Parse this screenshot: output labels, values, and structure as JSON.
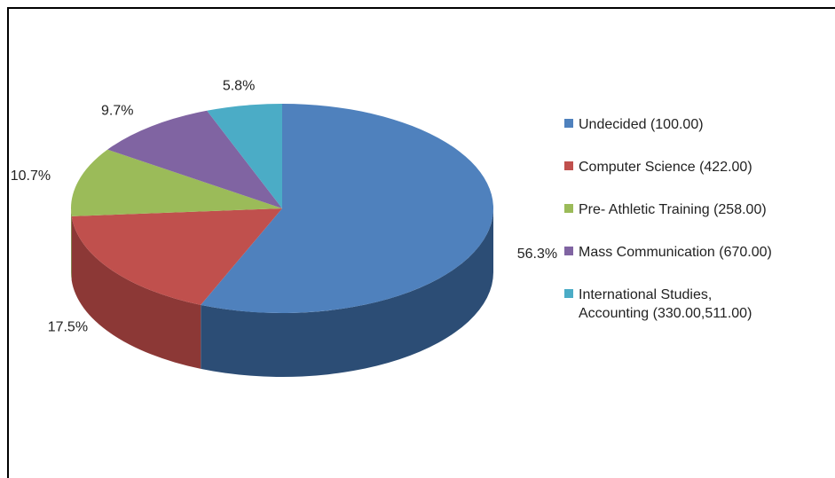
{
  "chart_data": {
    "type": "pie",
    "categories": [
      "Undecided (100.00)",
      "Computer Science (422.00)",
      "Pre- Athletic Training (258.00)",
      "Mass Communication (670.00)",
      "International Studies, Accounting (330.00,511.00)"
    ],
    "values": [
      56.3,
      17.5,
      10.7,
      9.7,
      5.8
    ],
    "value_labels": [
      "56.3%",
      "17.5%",
      "10.7%",
      "9.7%",
      "5.8%"
    ],
    "colors": [
      "#4f81bd",
      "#c0504d",
      "#9bbb59",
      "#8064a2",
      "#4bacc6"
    ],
    "sides": [
      "#2c4d75",
      "#8c3836",
      "#71893f",
      "#5c4776",
      "#31849b"
    ],
    "legend": "right"
  }
}
